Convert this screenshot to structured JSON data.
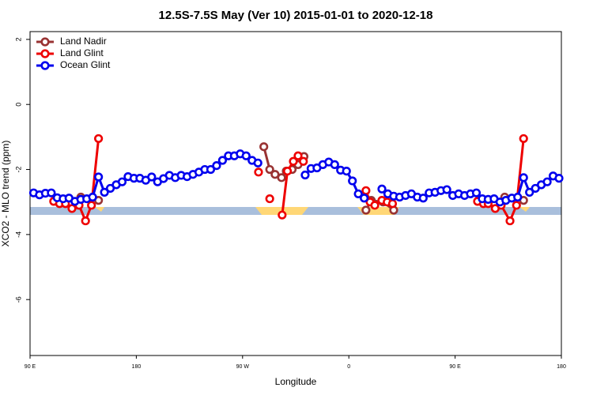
{
  "chart_data": {
    "type": "line",
    "title": "12.5S-7.5S May (Ver 10)   2015-01-01 to 2020-12-18",
    "x_label": "Longitude",
    "y_label": "XCO2 - MLO trend (ppm)",
    "xlim": [
      90,
      540
    ],
    "xticks": [
      {
        "value": 90,
        "label": "90 E"
      },
      180,
      {
        "value": 270,
        "label": "90 W"
      },
      {
        "value": 360,
        "label": "0"
      },
      {
        "value": 450,
        "label": "90 E"
      },
      {
        "value": 540,
        "label": "180"
      }
    ],
    "ylim": [
      -7.72,
      2.24
    ],
    "yticks": [
      -6,
      -4,
      -2,
      0,
      2
    ],
    "legend": "top-left",
    "series": [
      {
        "name": "Land Nadir",
        "color": "#993333",
        "x": [
          133,
          148,
          null,
          288,
          293,
          297.5,
          303,
          307,
          312,
          317,
          322,
          null,
          374.5,
          379,
          389,
          398,
          null,
          492,
          508
        ],
        "values": [
          -2.85,
          -2.95,
          null,
          -1.3,
          -2.0,
          -2.15,
          -2.25,
          -2.05,
          -2.0,
          -1.85,
          -1.6,
          null,
          -3.25,
          -2.95,
          -3.0,
          -3.25,
          null,
          -2.85,
          -2.95
        ]
      },
      {
        "name": "Land Glint",
        "color": "#ee0000",
        "x": [
          110,
          115,
          120,
          125.5,
          131.5,
          137,
          142,
          148,
          null,
          283.5,
          null,
          293,
          null,
          303.5,
          308,
          313,
          317,
          321.5,
          null,
          374.5,
          378,
          382,
          388,
          392.5,
          397,
          null,
          469,
          474,
          478,
          484,
          489,
          496.5,
          502,
          508
        ],
        "values": [
          -2.98,
          -3.05,
          -3.05,
          -3.2,
          -3.1,
          -3.58,
          -3.1,
          -1.05,
          null,
          -2.08,
          null,
          -2.9,
          null,
          -3.4,
          -2.05,
          -1.75,
          -1.58,
          -1.75,
          null,
          -2.65,
          -3.0,
          -3.1,
          -2.95,
          -3.0,
          -3.05,
          null,
          -2.98,
          -3.05,
          -3.05,
          -3.2,
          -3.1,
          -3.58,
          -3.1,
          -1.05
        ]
      },
      {
        "name": "Ocean Glint",
        "color": "#0000ee",
        "x": [
          93,
          98,
          103,
          108,
          113,
          118,
          123,
          128,
          133,
          138,
          143,
          148,
          153,
          158,
          163,
          168,
          173,
          178,
          183,
          188,
          193,
          198,
          203,
          208,
          213,
          218,
          223,
          228,
          233,
          238,
          243,
          248,
          253,
          258,
          263,
          268,
          273,
          278,
          283,
          null,
          323,
          328,
          333,
          338,
          343,
          348,
          353,
          358,
          363,
          368,
          373,
          null,
          388,
          393,
          398,
          403,
          408,
          413,
          418,
          423,
          428,
          433,
          438,
          443,
          448,
          453,
          458,
          463,
          468,
          473,
          478,
          483,
          488,
          493,
          498,
          503,
          508,
          513,
          518,
          523,
          528,
          533,
          538
        ],
        "values": [
          -2.72,
          -2.78,
          -2.73,
          -2.72,
          -2.87,
          -2.9,
          -2.88,
          -2.98,
          -2.92,
          -2.9,
          -2.85,
          -2.23,
          -2.7,
          -2.58,
          -2.47,
          -2.38,
          -2.22,
          -2.27,
          -2.27,
          -2.33,
          -2.23,
          -2.38,
          -2.28,
          -2.18,
          -2.25,
          -2.18,
          -2.22,
          -2.15,
          -2.08,
          -2.0,
          -2.0,
          -1.88,
          -1.72,
          -1.58,
          -1.58,
          -1.52,
          -1.58,
          -1.72,
          -1.8,
          null,
          -2.17,
          -1.97,
          -1.95,
          -1.85,
          -1.77,
          -1.85,
          -2.02,
          -2.05,
          -2.35,
          -2.75,
          -2.88,
          null,
          -2.6,
          -2.75,
          -2.82,
          -2.85,
          -2.8,
          -2.75,
          -2.85,
          -2.88,
          -2.72,
          -2.7,
          -2.65,
          -2.62,
          -2.8,
          -2.75,
          -2.8,
          -2.75,
          -2.72,
          -2.9,
          -2.92,
          -2.9,
          -3.0,
          -2.95,
          -2.88,
          -2.85,
          -2.25,
          -2.7,
          -2.58,
          -2.47,
          -2.38,
          -2.2,
          -2.27
        ]
      }
    ]
  }
}
